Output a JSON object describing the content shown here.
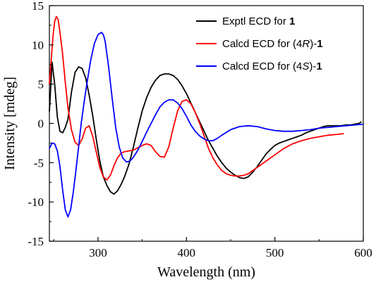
{
  "chart_data": {
    "type": "line",
    "xlabel": "Wavelength (nm)",
    "ylabel": "Intensity [mdeg]",
    "xlim": [
      245,
      600
    ],
    "ylim": [
      -15,
      15
    ],
    "xticks": [
      300,
      400,
      500,
      600
    ],
    "yticks": [
      -15,
      -10,
      -5,
      0,
      5,
      10,
      15
    ],
    "grid": false,
    "legend_position": "top-right",
    "series": [
      {
        "name": "Exptl ECD for 1",
        "legend_parts": [
          {
            "text": "Exptl ECD for ",
            "style": "normal"
          },
          {
            "text": "1",
            "style": "bold"
          }
        ],
        "color": "#000000",
        "x": [
          245,
          248,
          251,
          254,
          257,
          260,
          263,
          266,
          270,
          274,
          278,
          282,
          286,
          290,
          294,
          298,
          302,
          306,
          310,
          314,
          318,
          322,
          326,
          330,
          335,
          340,
          345,
          350,
          355,
          360,
          365,
          370,
          375,
          380,
          385,
          390,
          395,
          400,
          405,
          410,
          415,
          420,
          425,
          430,
          435,
          440,
          445,
          450,
          455,
          460,
          465,
          470,
          475,
          480,
          485,
          490,
          495,
          500,
          505,
          510,
          515,
          520,
          525,
          530,
          535,
          540,
          545,
          550,
          555,
          560,
          565,
          570,
          575,
          580,
          585,
          590,
          595,
          598
        ],
        "y": [
          1.5,
          7.8,
          5.0,
          0.8,
          -1.0,
          -1.2,
          -0.5,
          0.5,
          4.0,
          6.5,
          7.2,
          7.0,
          5.8,
          3.6,
          1.0,
          -2.0,
          -4.8,
          -6.8,
          -7.9,
          -8.7,
          -9.0,
          -8.6,
          -7.8,
          -6.8,
          -5.2,
          -3.0,
          -0.6,
          1.6,
          3.3,
          4.6,
          5.5,
          6.1,
          6.3,
          6.3,
          6.1,
          5.6,
          4.8,
          3.8,
          2.6,
          1.4,
          0.2,
          -1.0,
          -2.2,
          -3.2,
          -4.2,
          -5.0,
          -5.7,
          -6.2,
          -6.6,
          -6.9,
          -7.0,
          -6.8,
          -6.2,
          -5.5,
          -4.7,
          -3.9,
          -3.3,
          -2.8,
          -2.5,
          -2.3,
          -2.1,
          -1.9,
          -1.7,
          -1.5,
          -1.2,
          -1.0,
          -0.8,
          -0.6,
          -0.4,
          -0.3,
          -0.3,
          -0.3,
          -0.3,
          -0.2,
          -0.2,
          -0.1,
          0.0,
          0.2
        ]
      },
      {
        "name": "Calcd ECD for (4R)-1",
        "legend_parts": [
          {
            "text": "Calcd ECD for ",
            "style": "normal"
          },
          {
            "text": "(4",
            "style": "normal"
          },
          {
            "text": "R",
            "style": "italic"
          },
          {
            "text": ")-",
            "style": "normal"
          },
          {
            "text": "1",
            "style": "bold"
          }
        ],
        "color": "#ff0000",
        "x": [
          245,
          247,
          249,
          251,
          253,
          255,
          257,
          260,
          263,
          266,
          270,
          274,
          278,
          282,
          286,
          290,
          294,
          298,
          302,
          306,
          310,
          314,
          318,
          322,
          326,
          330,
          335,
          340,
          345,
          350,
          355,
          360,
          365,
          370,
          375,
          380,
          385,
          390,
          395,
          400,
          405,
          410,
          415,
          420,
          425,
          430,
          435,
          440,
          445,
          450,
          455,
          460,
          465,
          470,
          475,
          480,
          490,
          500,
          510,
          520,
          530,
          540,
          550,
          560,
          570,
          578
        ],
        "y": [
          5.0,
          8.0,
          11.0,
          13.0,
          13.6,
          13.2,
          11.6,
          8.8,
          5.2,
          2.0,
          -0.8,
          -2.4,
          -2.8,
          -2.0,
          -0.6,
          -0.3,
          -1.6,
          -3.6,
          -5.6,
          -6.8,
          -7.2,
          -6.6,
          -5.4,
          -4.4,
          -3.8,
          -3.6,
          -3.5,
          -3.4,
          -3.1,
          -2.8,
          -2.6,
          -2.8,
          -3.6,
          -4.2,
          -4.3,
          -3.0,
          -0.6,
          1.6,
          2.8,
          3.0,
          2.5,
          1.4,
          0.0,
          -1.6,
          -3.2,
          -4.4,
          -5.3,
          -6.0,
          -6.4,
          -6.6,
          -6.7,
          -6.7,
          -6.6,
          -6.4,
          -6.0,
          -5.6,
          -4.8,
          -4.0,
          -3.2,
          -2.6,
          -2.2,
          -1.9,
          -1.7,
          -1.5,
          -1.4,
          -1.3
        ]
      },
      {
        "name": "Calcd ECD for (4S)-1",
        "legend_parts": [
          {
            "text": "Calcd ECD for ",
            "style": "normal"
          },
          {
            "text": "(4",
            "style": "normal"
          },
          {
            "text": "S",
            "style": "italic"
          },
          {
            "text": ")-",
            "style": "normal"
          },
          {
            "text": "1",
            "style": "bold"
          }
        ],
        "color": "#0000ff",
        "x": [
          245,
          248,
          251,
          254,
          257,
          260,
          263,
          266,
          269,
          272,
          275,
          278,
          281,
          284,
          288,
          292,
          296,
          300,
          304,
          306,
          308,
          312,
          316,
          320,
          324,
          328,
          332,
          336,
          340,
          345,
          350,
          355,
          360,
          365,
          370,
          375,
          380,
          385,
          390,
          395,
          400,
          405,
          410,
          415,
          420,
          425,
          430,
          435,
          440,
          450,
          460,
          470,
          480,
          490,
          500,
          510,
          520,
          530,
          540,
          550,
          560,
          570,
          580,
          590,
          600
        ],
        "y": [
          -3.2,
          -2.5,
          -2.6,
          -3.5,
          -5.5,
          -8.5,
          -11.0,
          -11.9,
          -11.0,
          -8.8,
          -6.0,
          -3.0,
          0.0,
          2.5,
          5.5,
          8.2,
          10.2,
          11.3,
          11.6,
          11.3,
          10.5,
          7.2,
          3.2,
          -0.5,
          -3.0,
          -4.4,
          -4.9,
          -4.8,
          -4.3,
          -3.4,
          -2.3,
          -1.1,
          0.0,
          1.1,
          2.1,
          2.7,
          3.0,
          3.0,
          2.6,
          1.9,
          0.9,
          -0.2,
          -1.0,
          -1.6,
          -2.0,
          -2.2,
          -2.2,
          -1.9,
          -1.5,
          -0.8,
          -0.4,
          -0.3,
          -0.4,
          -0.7,
          -0.9,
          -1.0,
          -1.0,
          -0.9,
          -0.8,
          -0.6,
          -0.5,
          -0.4,
          -0.3,
          -0.2,
          -0.1
        ]
      }
    ]
  }
}
